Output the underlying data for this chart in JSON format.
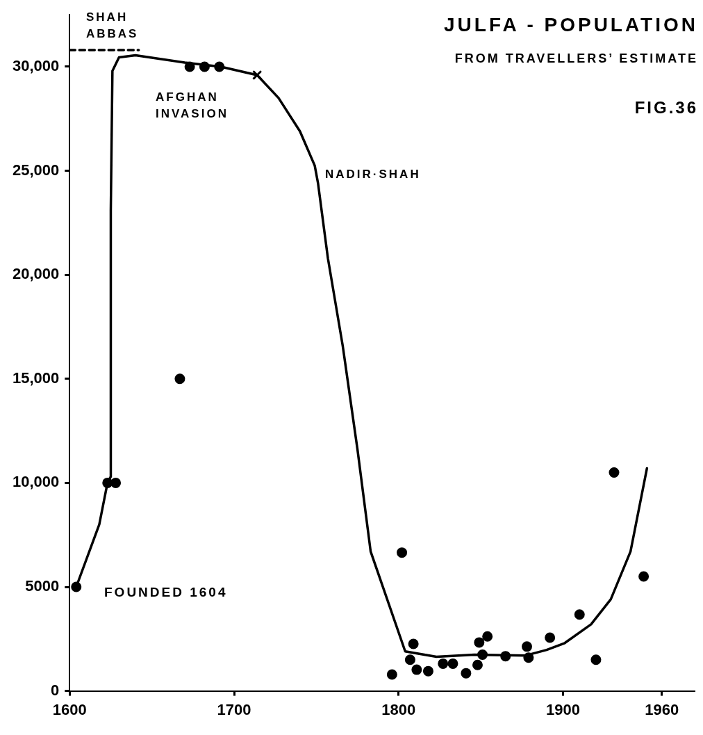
{
  "chart_data": {
    "type": "line",
    "title": "JULFA - POPULATION",
    "subtitle": "FROM TRAVELLERS’ ESTIMATE",
    "xlim": [
      1600,
      1980
    ],
    "xticks": [
      1600,
      1700,
      1800,
      1900,
      1960
    ],
    "ylim": [
      0,
      32500
    ],
    "yticks": [
      0,
      5000,
      {
        "value": 10000,
        "label": "10,000"
      },
      {
        "value": 15000,
        "label": "15,000"
      },
      {
        "value": 20000,
        "label": "20,000"
      },
      {
        "value": 25000,
        "label": "25,000"
      },
      {
        "value": 30000,
        "label": "30,000"
      }
    ],
    "grid": false,
    "legend": false,
    "series": [
      {
        "color": "#000000",
        "marker": "none",
        "line_style": "solid",
        "x": [
          1604,
          1618,
          1623,
          1625,
          1625,
          1626,
          1630,
          1640,
          1670,
          1692,
          1714,
          1727,
          1740,
          1749,
          1751,
          1757,
          1766,
          1775,
          1783,
          1804,
          1823,
          1846,
          1877,
          1890,
          1901,
          1917,
          1929,
          1941,
          1951
        ],
        "values": [
          5000,
          8000,
          10000,
          10300,
          23100,
          29800,
          30450,
          30550,
          30200,
          30000,
          29600,
          28500,
          26900,
          25250,
          24400,
          20800,
          16600,
          11600,
          6700,
          1900,
          1640,
          1740,
          1700,
          1970,
          2300,
          3200,
          4400,
          6700,
          10700
        ]
      },
      {
        "type": "scatter",
        "color": "#000000",
        "marker": "circle",
        "x": [
          1604,
          1623,
          1628,
          1667,
          1673,
          1682,
          1691,
          1796,
          1802,
          1807,
          1809,
          1811,
          1818,
          1827,
          1833,
          1841,
          1848,
          1849,
          1851,
          1854,
          1865,
          1878,
          1879,
          1892,
          1910,
          1920,
          1931,
          1949
        ],
        "values": [
          5000,
          10000,
          10000,
          15000,
          30000,
          30000,
          30000,
          790,
          6650,
          1500,
          2260,
          1020,
          950,
          1310,
          1310,
          850,
          1250,
          2330,
          1740,
          2620,
          1670,
          2130,
          1600,
          2560,
          3670,
          1500,
          10500,
          5500
        ]
      },
      {
        "type": "scatter",
        "color": "#000000",
        "marker": "cross",
        "x": [
          1714
        ],
        "values": [
          29600
        ]
      },
      {
        "color": "#000000",
        "marker": "none",
        "line_style": "dashed",
        "x": [
          1600,
          1642
        ],
        "values": [
          30800,
          30800
        ]
      }
    ],
    "annotations": [
      "SHAH ABBAS",
      "AFGHAN INVASION",
      "NADIR·SHAH",
      "FOUNDED 1604",
      "FIG.36"
    ]
  }
}
